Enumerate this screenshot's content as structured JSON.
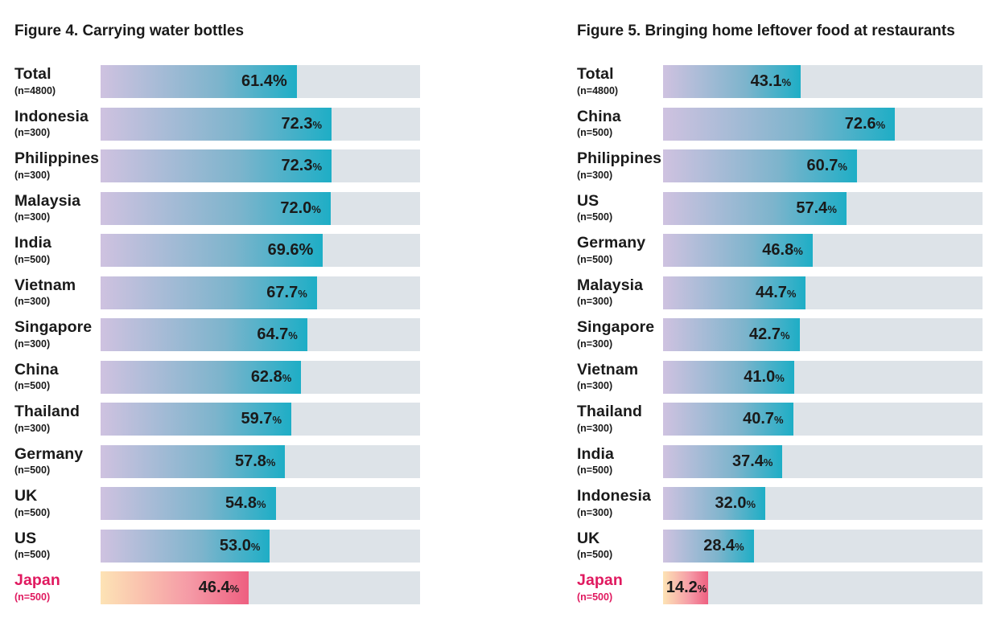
{
  "chart_data": [
    {
      "type": "bar",
      "orientation": "horizontal",
      "title": "Figure 4. Carrying water bottles",
      "unit": "%",
      "xlim": [
        0,
        100
      ],
      "bar_colors": {
        "default": [
          "#cfc2e0",
          "#1eaec6"
        ],
        "highlight": [
          "#fde3b5",
          "#ee5f80"
        ]
      },
      "label_highlight_color": "#e0195f",
      "track_color": "#dde3e8",
      "rows": [
        {
          "name": "Total",
          "n": "(n=4800)",
          "value": 61.4,
          "value_label": "61.4%",
          "highlight": false
        },
        {
          "name": "Indonesia",
          "n": "(n=300)",
          "value": 72.3,
          "value_label": "72.3",
          "highlight": false
        },
        {
          "name": "Philippines",
          "n": "(n=300)",
          "value": 72.3,
          "value_label": "72.3",
          "highlight": false
        },
        {
          "name": "Malaysia",
          "n": "(n=300)",
          "value": 72.0,
          "value_label": "72.0",
          "highlight": false
        },
        {
          "name": "India",
          "n": "(n=500)",
          "value": 69.6,
          "value_label": "69.6%",
          "highlight": false
        },
        {
          "name": "Vietnam",
          "n": "(n=300)",
          "value": 67.7,
          "value_label": "67.7",
          "highlight": false
        },
        {
          "name": "Singapore",
          "n": "(n=300)",
          "value": 64.7,
          "value_label": "64.7",
          "highlight": false
        },
        {
          "name": "China",
          "n": "(n=500)",
          "value": 62.8,
          "value_label": "62.8",
          "highlight": false
        },
        {
          "name": "Thailand",
          "n": "(n=300)",
          "value": 59.7,
          "value_label": "59.7",
          "highlight": false
        },
        {
          "name": "Germany",
          "n": "(n=500)",
          "value": 57.8,
          "value_label": "57.8",
          "highlight": false
        },
        {
          "name": "UK",
          "n": "(n=500)",
          "value": 54.8,
          "value_label": "54.8",
          "highlight": false
        },
        {
          "name": "US",
          "n": "(n=500)",
          "value": 53.0,
          "value_label": "53.0",
          "highlight": false
        },
        {
          "name": "Japan",
          "n": "(n=500)",
          "value": 46.4,
          "value_label": "46.4",
          "highlight": true
        }
      ]
    },
    {
      "type": "bar",
      "orientation": "horizontal",
      "title": "Figure 5. Bringing home leftover food at restaurants",
      "unit": "%",
      "xlim": [
        0,
        100
      ],
      "bar_colors": {
        "default": [
          "#cfc2e0",
          "#1eaec6"
        ],
        "highlight": [
          "#fde3b5",
          "#ee5f80"
        ]
      },
      "label_highlight_color": "#e0195f",
      "track_color": "#dde3e8",
      "rows": [
        {
          "name": "Total",
          "n": "(n=4800)",
          "value": 43.1,
          "value_label": "43.1",
          "highlight": false
        },
        {
          "name": "China",
          "n": "(n=500)",
          "value": 72.6,
          "value_label": "72.6",
          "highlight": false
        },
        {
          "name": "Philippines",
          "n": "(n=300)",
          "value": 60.7,
          "value_label": "60.7",
          "highlight": false
        },
        {
          "name": "US",
          "n": "(n=500)",
          "value": 57.4,
          "value_label": "57.4",
          "highlight": false
        },
        {
          "name": "Germany",
          "n": "(n=500)",
          "value": 46.8,
          "value_label": "46.8",
          "highlight": false
        },
        {
          "name": "Malaysia",
          "n": "(n=300)",
          "value": 44.7,
          "value_label": "44.7",
          "highlight": false
        },
        {
          "name": "Singapore",
          "n": "(n=300)",
          "value": 42.7,
          "value_label": "42.7",
          "highlight": false
        },
        {
          "name": "Vietnam",
          "n": "(n=300)",
          "value": 41.0,
          "value_label": "41.0",
          "highlight": false
        },
        {
          "name": "Thailand",
          "n": "(n=300)",
          "value": 40.7,
          "value_label": "40.7",
          "highlight": false
        },
        {
          "name": "India",
          "n": "(n=500)",
          "value": 37.4,
          "value_label": "37.4",
          "highlight": false
        },
        {
          "name": "Indonesia",
          "n": "(n=300)",
          "value": 32.0,
          "value_label": "32.0",
          "highlight": false
        },
        {
          "name": "UK",
          "n": "(n=500)",
          "value": 28.4,
          "value_label": "28.4",
          "highlight": false
        },
        {
          "name": "Japan",
          "n": "(n=500)",
          "value": 14.2,
          "value_label": "14.2",
          "highlight": true
        }
      ]
    }
  ]
}
